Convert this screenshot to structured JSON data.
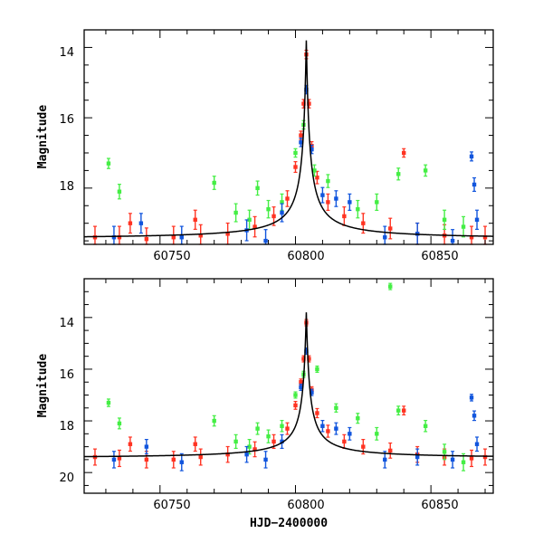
{
  "chart_data": [
    {
      "type": "scatter",
      "panel": "top",
      "title": "",
      "xlabel": "",
      "ylabel": "Magnitude",
      "xlim": [
        60722,
        60873
      ],
      "ylim": [
        19.6,
        13.5
      ],
      "y_inverted": true,
      "xticks": [
        "60750",
        "60800",
        "60850"
      ],
      "yticks": [
        "14",
        "16",
        "18"
      ],
      "grid": false,
      "baseline_magnitude": 19.45,
      "colors": {
        "red": "#ff3322",
        "green": "#44ee44",
        "blue": "#1155dd",
        "model": "#000000"
      },
      "peak": {
        "x": 60804,
        "y": 13.8
      },
      "series": [
        {
          "color": "red",
          "x": [
            60726,
            60735,
            60745,
            60755,
            60765,
            60775,
            60785,
            60792,
            60797,
            60800,
            60802,
            60803,
            60804,
            60805,
            60806,
            60808,
            60812,
            60818,
            60825,
            60835,
            60845,
            60855,
            60865,
            60870,
            60739,
            60763,
            60840
          ],
          "y": [
            19.4,
            19.4,
            19.45,
            19.4,
            19.35,
            19.3,
            19.1,
            18.8,
            18.3,
            17.4,
            16.5,
            15.6,
            14.2,
            15.6,
            16.8,
            17.7,
            18.4,
            18.8,
            19.0,
            19.15,
            19.3,
            19.35,
            19.4,
            19.4,
            19.0,
            18.9,
            17.0
          ]
        },
        {
          "color": "green",
          "x": [
            60731,
            60735,
            60770,
            60778,
            60783,
            60786,
            60790,
            60795,
            60800,
            60803,
            60807,
            60812,
            60823,
            60830,
            60838,
            60848,
            60855,
            60862
          ],
          "y": [
            17.3,
            18.1,
            17.85,
            18.7,
            18.9,
            18.0,
            18.6,
            18.4,
            17.0,
            16.2,
            17.5,
            17.8,
            18.6,
            18.4,
            17.6,
            17.5,
            18.9,
            19.1
          ]
        },
        {
          "color": "blue",
          "x": [
            60733,
            60743,
            60758,
            60782,
            60789,
            60795,
            60802,
            60804,
            60806,
            60810,
            60815,
            60820,
            60833,
            60845,
            60858,
            60865,
            60866,
            60867
          ],
          "y": [
            19.4,
            19.0,
            19.4,
            19.2,
            19.5,
            18.7,
            16.7,
            15.2,
            16.9,
            18.2,
            18.3,
            18.4,
            19.4,
            19.3,
            19.5,
            17.1,
            17.9,
            18.9
          ]
        }
      ]
    },
    {
      "type": "scatter",
      "panel": "bottom",
      "title": "",
      "xlabel": "HJD−2400000",
      "ylabel": "Magnitude",
      "xlim": [
        60722,
        60873
      ],
      "ylim": [
        20.8,
        12.5
      ],
      "y_inverted": true,
      "xticks": [
        "60750",
        "60800",
        "60850"
      ],
      "yticks": [
        "14",
        "16",
        "18",
        "20"
      ],
      "grid": false,
      "baseline_magnitude": 19.45,
      "colors": {
        "red": "#ff3322",
        "green": "#44ee44",
        "blue": "#1155dd",
        "model": "#000000"
      },
      "peak": {
        "x": 60804,
        "y": 13.8
      },
      "series": [
        {
          "color": "red",
          "x": [
            60726,
            60735,
            60745,
            60755,
            60765,
            60775,
            60785,
            60792,
            60797,
            60800,
            60802,
            60803,
            60804,
            60805,
            60806,
            60808,
            60812,
            60818,
            60825,
            60835,
            60845,
            60855,
            60865,
            60870,
            60739,
            60763,
            60840
          ],
          "y": [
            19.4,
            19.45,
            19.5,
            19.5,
            19.4,
            19.3,
            19.1,
            18.8,
            18.3,
            17.4,
            16.5,
            15.6,
            14.2,
            15.6,
            16.8,
            17.7,
            18.4,
            18.8,
            19.0,
            19.15,
            19.3,
            19.4,
            19.45,
            19.4,
            18.9,
            18.9,
            17.6
          ]
        },
        {
          "color": "green",
          "x": [
            60731,
            60735,
            60770,
            60778,
            60783,
            60786,
            60790,
            60795,
            60800,
            60803,
            60808,
            60815,
            60823,
            60830,
            60835,
            60838,
            60848,
            60855,
            60862
          ],
          "y": [
            17.3,
            18.1,
            18.0,
            18.8,
            19.0,
            18.3,
            18.6,
            18.2,
            17.0,
            16.2,
            16.0,
            17.5,
            17.9,
            18.5,
            12.8,
            17.6,
            18.2,
            19.2,
            19.6
          ]
        },
        {
          "color": "blue",
          "x": [
            60733,
            60745,
            60758,
            60782,
            60789,
            60795,
            60802,
            60804,
            60806,
            60810,
            60815,
            60820,
            60833,
            60845,
            60858,
            60865,
            60866,
            60867
          ],
          "y": [
            19.5,
            19.0,
            19.6,
            19.3,
            19.5,
            18.8,
            16.7,
            15.3,
            16.9,
            18.2,
            18.3,
            18.5,
            19.5,
            19.4,
            19.5,
            17.1,
            17.8,
            18.9
          ]
        }
      ]
    }
  ]
}
